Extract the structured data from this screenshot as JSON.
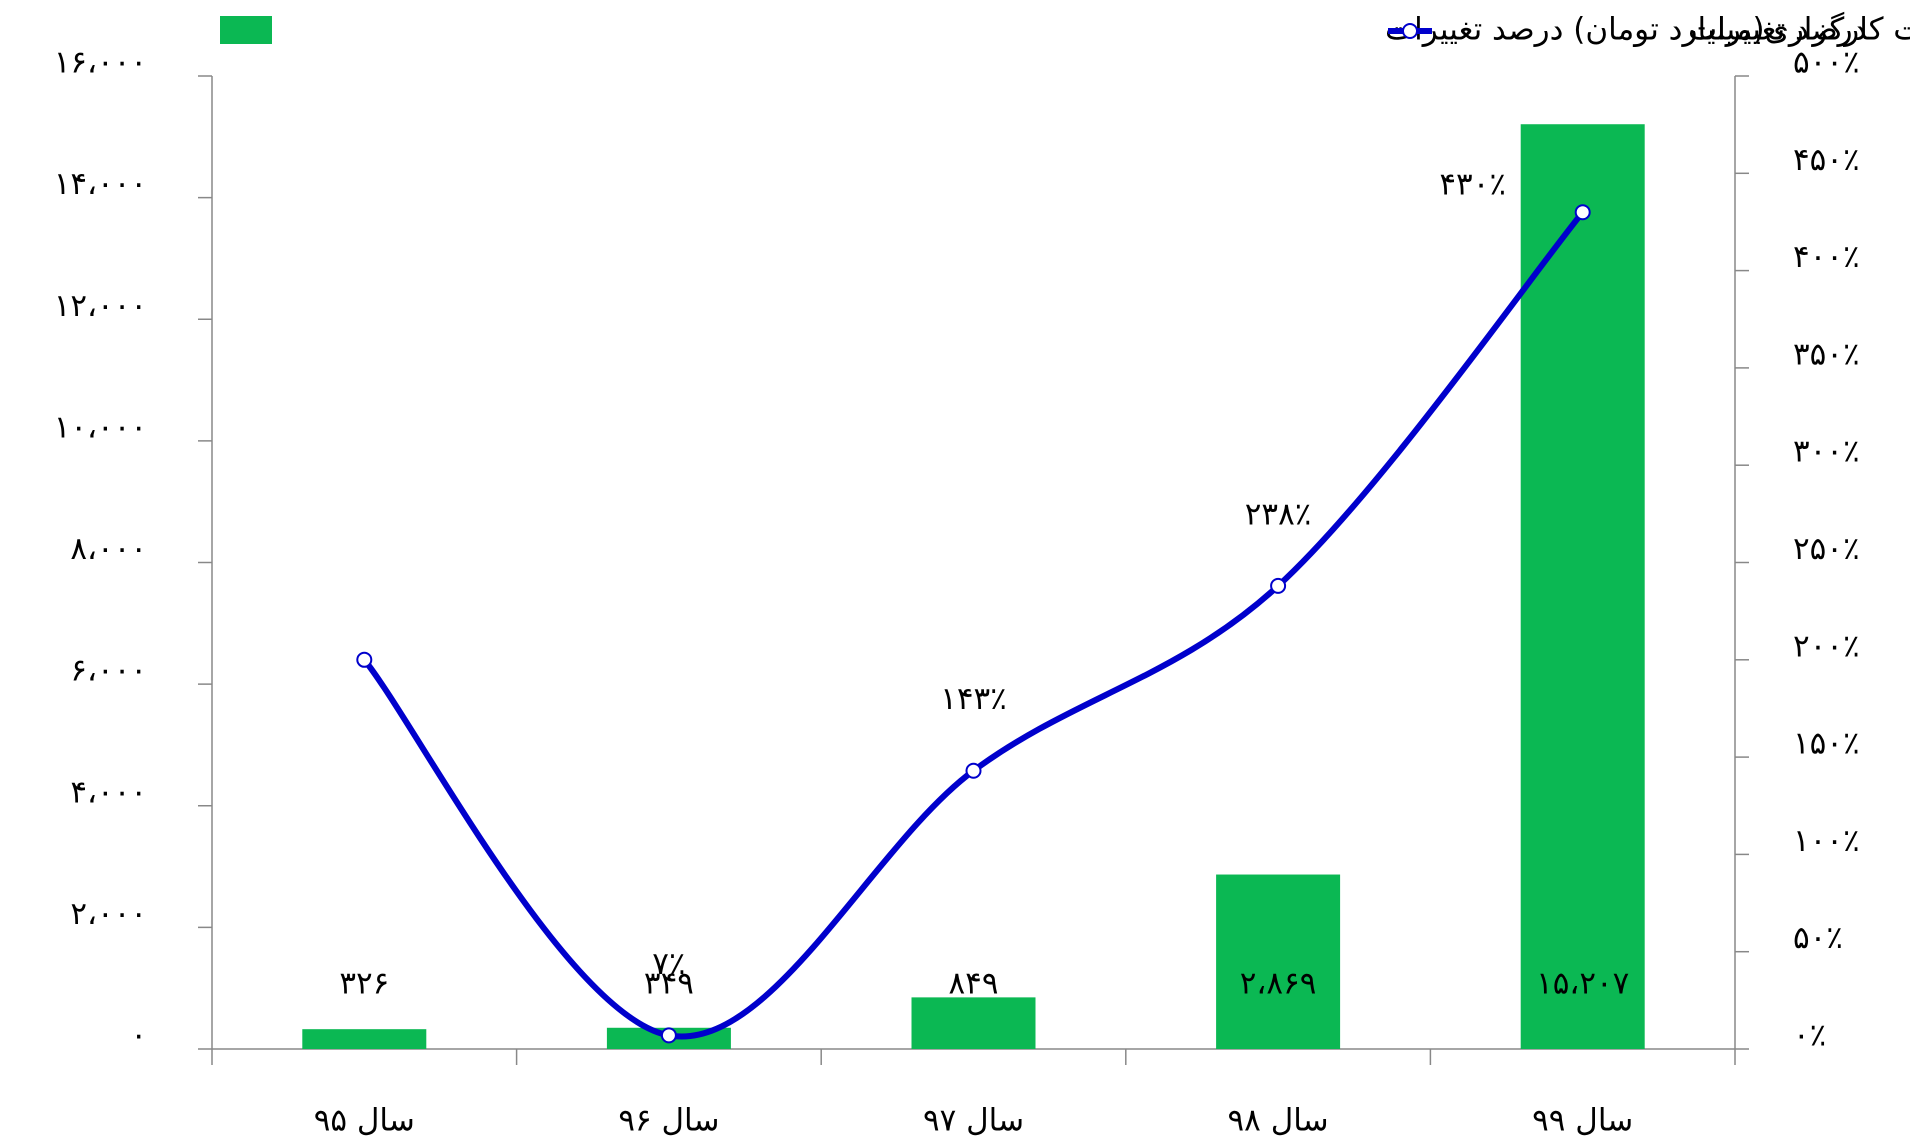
{
  "chart_data": {
    "type": "bar_line",
    "categories": [
      "سال ۹۵",
      "سال ۹۶",
      "سال ۹۷",
      "سال ۹۸",
      "سال ۹۹"
    ],
    "series": [
      {
        "name": "مجموع سود عملیاتی صنعت کارگزاری(میلیارد تومان) درصد تغییرات",
        "type": "bar",
        "color": "#0bb853",
        "axis": "y",
        "values": [
          326,
          349,
          849,
          2869,
          15207
        ],
        "value_labels": [
          "۳۲۶",
          "۳۴۹",
          "۸۴۹",
          "۲،۸۶۹",
          "۱۵،۲۰۷"
        ]
      },
      {
        "name": "درصد تغییرات",
        "type": "line",
        "color": "#0000cc",
        "axis": "y2",
        "values": [
          200,
          7,
          143,
          238,
          430
        ],
        "value_labels": [
          null,
          "۷٪",
          "۱۴۳٪",
          "۲۳۸٪",
          "۴۳۰٪"
        ]
      }
    ],
    "ylim": [
      0,
      16000
    ],
    "yticks": [
      {
        "value": 0,
        "label": "۰"
      },
      {
        "value": 2000,
        "label": "۲،۰۰۰"
      },
      {
        "value": 4000,
        "label": "۴،۰۰۰"
      },
      {
        "value": 6000,
        "label": "۶،۰۰۰"
      },
      {
        "value": 8000,
        "label": "۸،۰۰۰"
      },
      {
        "value": 10000,
        "label": "۱۰،۰۰۰"
      },
      {
        "value": 12000,
        "label": "۱۲،۰۰۰"
      },
      {
        "value": 14000,
        "label": "۱۴،۰۰۰"
      },
      {
        "value": 16000,
        "label": "۱۶،۰۰۰"
      }
    ],
    "y2lim": [
      0,
      500
    ],
    "y2ticks": [
      {
        "value": 0,
        "label": "۰٪"
      },
      {
        "value": 50,
        "label": "۵۰٪"
      },
      {
        "value": 100,
        "label": "۱۰۰٪"
      },
      {
        "value": 150,
        "label": "۱۵۰٪"
      },
      {
        "value": 200,
        "label": "۲۰۰٪"
      },
      {
        "value": 250,
        "label": "۲۵۰٪"
      },
      {
        "value": 300,
        "label": "۳۰۰٪"
      },
      {
        "value": 350,
        "label": "۳۵۰٪"
      },
      {
        "value": 400,
        "label": "۴۰۰٪"
      },
      {
        "value": 450,
        "label": "۴۵۰٪"
      },
      {
        "value": 500,
        "label": "۵۰۰٪"
      }
    ],
    "legend": "top"
  }
}
